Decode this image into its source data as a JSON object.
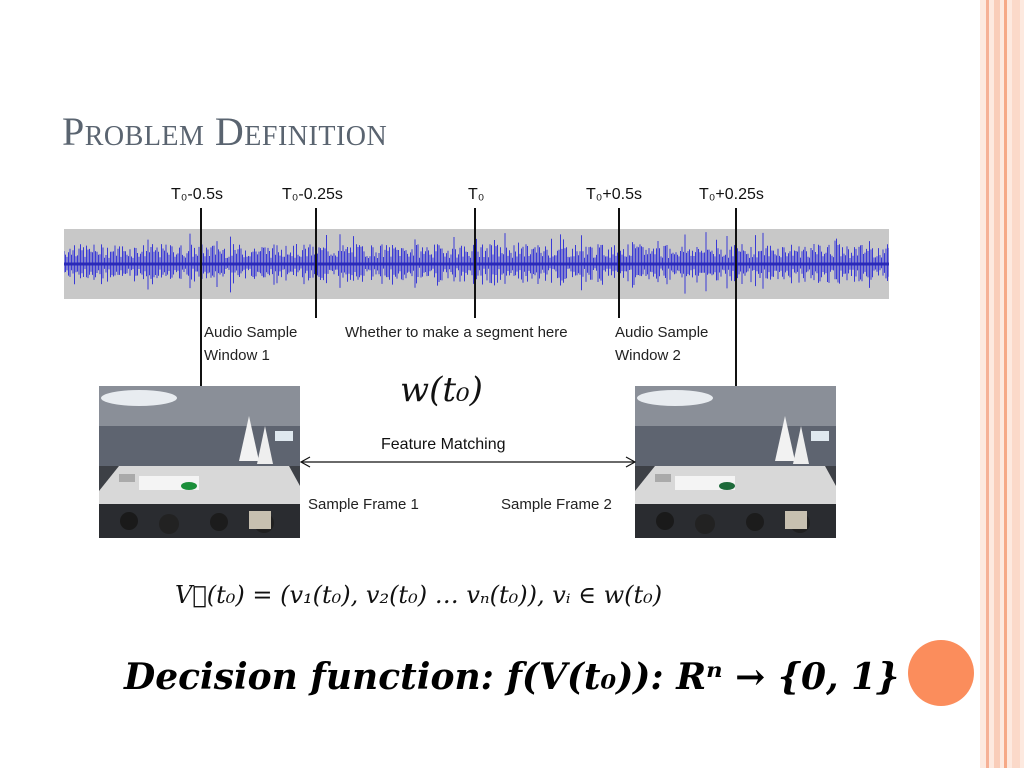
{
  "slide": {
    "title": "Problem Definition",
    "time_labels": [
      "T₀-0.5s",
      "T₀-0.25s",
      "T₀",
      "T₀+0.5s",
      "T₀+0.25s"
    ],
    "audio_window_1": [
      "Audio Sample",
      "Window 1"
    ],
    "segment_question": "Whether to make a segment here",
    "audio_window_2": [
      "Audio Sample",
      "Window 2"
    ],
    "window_function": "w(t₀)",
    "feature_matching": "Feature Matching",
    "sample_frame_1": "Sample Frame 1",
    "sample_frame_2": "Sample Frame 2",
    "vector_equation": "V⃗(t₀) = (v₁(t₀), v₂(t₀) … vₙ(t₀)), vᵢ ∈ w(t₀)",
    "decision_function": "Decision function: f(V(t₀)): Rⁿ → {0, 1}"
  },
  "colors": {
    "title": "#5a6470",
    "waveform": "#3a3ad6",
    "waveform_bg": "#c8c8c8",
    "accent_circle": "#fb8d5c",
    "stripes": [
      "#f9cdb9",
      "#f6a987"
    ]
  },
  "icons": [
    "waveform-graphic",
    "stadium-photo",
    "double-arrow-icon",
    "decorative-circle"
  ]
}
